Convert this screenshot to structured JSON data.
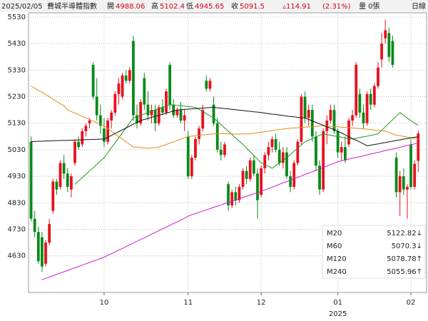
{
  "header": {
    "date": "2025/02/05",
    "name": "費城半導體指數",
    "quote": [
      {
        "label": "開",
        "value": "4988.06"
      },
      {
        "label": "高",
        "value": "5102.4"
      },
      {
        "label": "低",
        "value": "4945.65"
      },
      {
        "label": "收",
        "value": "5091.5"
      }
    ],
    "change": "▵114.91",
    "change_pct": "(2.31%)",
    "volume": "量 0張",
    "period": "日線"
  },
  "chart_data": {
    "type": "candlestick",
    "categories": [
      null,
      null,
      null,
      null,
      null,
      null,
      null,
      null,
      null,
      null,
      null,
      null,
      null,
      null,
      null,
      null,
      null,
      null,
      null,
      null,
      "10",
      null,
      null,
      null,
      null,
      null,
      null,
      null,
      null,
      null,
      null,
      null,
      null,
      null,
      null,
      null,
      null,
      null,
      null,
      null,
      null,
      null,
      null,
      "11",
      null,
      null,
      null,
      null,
      null,
      null,
      null,
      null,
      null,
      null,
      null,
      null,
      null,
      null,
      null,
      null,
      null,
      null,
      null,
      "12",
      null,
      null,
      null,
      null,
      null,
      null,
      null,
      null,
      null,
      null,
      null,
      null,
      null,
      null,
      null,
      null,
      null,
      null,
      null,
      null,
      "01",
      null,
      null,
      null,
      null,
      null,
      null,
      null,
      null,
      null,
      null,
      null,
      null,
      null,
      null,
      null,
      null,
      null,
      null,
      null,
      "02",
      null,
      null
    ],
    "year_label": "2025",
    "up_color": "#e8101e",
    "down_color": "#0a8a1a",
    "open": [
      5060,
      4770,
      4720,
      4700,
      4600,
      4680,
      4800,
      4910,
      4890,
      4980,
      4940,
      4880,
      4980,
      5060,
      5050,
      5100,
      5130,
      5350,
      5230,
      5160,
      5110,
      5060,
      5140,
      5170,
      5240,
      5230,
      5310,
      5290,
      5440,
      5160,
      5130,
      5300,
      5200,
      5160,
      5180,
      5130,
      5190,
      5170,
      5350,
      5200,
      5160,
      5180,
      5140,
      5080,
      4930,
      5000,
      5070,
      5110,
      5290,
      5260,
      5200,
      5130,
      5030,
      5010,
      4900,
      4820,
      4870,
      4840,
      4890,
      4950,
      4920,
      4990,
      4940,
      4860,
      4960,
      5010,
      5040,
      5070,
      5030,
      4980,
      5020,
      4930,
      4890,
      4980,
      5060,
      5230,
      5150,
      5180,
      5080,
      4970,
      4880,
      5100,
      5140,
      5180,
      5100,
      5020,
      5040,
      5050,
      5140,
      5160,
      5240,
      5170,
      5130,
      5240,
      5200,
      5270,
      5370,
      5450,
      5470,
      5440,
      5000,
      4870,
      4930,
      4880,
      5050,
      4890,
      4988.06
    ],
    "high": [
      5080,
      4800,
      4740,
      4720,
      4690,
      4770,
      4920,
      4920,
      4990,
      5010,
      4960,
      4940,
      5070,
      5080,
      5110,
      5130,
      5150,
      5360,
      5300,
      5200,
      5150,
      5150,
      5180,
      5250,
      5300,
      5320,
      5330,
      5340,
      5460,
      5200,
      5220,
      5320,
      5250,
      5200,
      5200,
      5200,
      5220,
      5260,
      5360,
      5220,
      5190,
      5210,
      5180,
      5100,
      5010,
      5080,
      5120,
      5200,
      5310,
      5300,
      5230,
      5150,
      5060,
      5060,
      4910,
      4880,
      4890,
      4900,
      4960,
      4970,
      5000,
      5010,
      4960,
      4970,
      5020,
      5060,
      5080,
      5090,
      5060,
      5040,
      5040,
      4950,
      4990,
      5070,
      5240,
      5250,
      5200,
      5200,
      5100,
      4990,
      5110,
      5160,
      5200,
      5200,
      5110,
      5060,
      5080,
      5150,
      5180,
      5360,
      5260,
      5200,
      5250,
      5260,
      5280,
      5360,
      5470,
      5520,
      5490,
      5460,
      5020,
      4950,
      4960,
      4900,
      5070,
      4990,
      5102.4
    ],
    "low": [
      4760,
      4700,
      4600,
      4570,
      4590,
      4670,
      4790,
      4860,
      4880,
      4920,
      4870,
      4850,
      4970,
      5030,
      5040,
      5080,
      5110,
      5220,
      5140,
      5090,
      5040,
      5050,
      5110,
      5160,
      5200,
      5220,
      5280,
      5280,
      5140,
      5110,
      5120,
      5180,
      5140,
      5130,
      5100,
      5120,
      5160,
      5160,
      5180,
      5150,
      5150,
      5130,
      5100,
      4920,
      4920,
      4990,
      5050,
      5100,
      5250,
      5250,
      5120,
      5020,
      4990,
      5000,
      4800,
      4810,
      4820,
      4830,
      4880,
      4900,
      4910,
      4930,
      4770,
      4850,
      4940,
      4990,
      5020,
      5020,
      4970,
      4960,
      4920,
      4870,
      4880,
      4970,
      5050,
      5130,
      5120,
      5060,
      4950,
      4860,
      4870,
      5050,
      5130,
      5090,
      5000,
      4990,
      4980,
      5040,
      5120,
      5150,
      5150,
      5110,
      5120,
      5180,
      5190,
      5260,
      5340,
      5430,
      5360,
      5340,
      4850,
      4780,
      4860,
      4770,
      4880,
      4880,
      4945.65
    ],
    "close": [
      4770,
      4720,
      4610,
      4590,
      4680,
      4750,
      4910,
      4880,
      4980,
      4940,
      4890,
      4930,
      5060,
      5040,
      5100,
      5120,
      5140,
      5230,
      5160,
      5120,
      5060,
      5140,
      5170,
      5240,
      5280,
      5310,
      5290,
      5330,
      5160,
      5130,
      5210,
      5200,
      5160,
      5180,
      5130,
      5190,
      5170,
      5250,
      5200,
      5160,
      5180,
      5140,
      5160,
      4930,
      5000,
      5070,
      5110,
      5180,
      5260,
      5290,
      5130,
      5030,
      5010,
      5050,
      4820,
      4870,
      4840,
      4890,
      4950,
      4920,
      4990,
      4940,
      4840,
      4960,
      5010,
      5040,
      5070,
      5030,
      4980,
      5020,
      4930,
      4890,
      4980,
      5060,
      5230,
      5150,
      5180,
      5080,
      4970,
      4880,
      5100,
      5140,
      5180,
      5100,
      5020,
      5040,
      4990,
      5140,
      5160,
      5350,
      5170,
      5130,
      5240,
      5200,
      5270,
      5340,
      5430,
      5480,
      5380,
      5350,
      4870,
      4930,
      4880,
      4890,
      4890,
      4976.59,
      5091.5
    ],
    "series": [
      {
        "name": "M20",
        "color": "#1a9a1a",
        "label": "5122.82↓",
        "values": [
          null,
          null,
          null,
          null,
          null,
          null,
          null,
          null,
          null,
          null,
          null,
          null,
          4900,
          4912,
          4925,
          4937,
          4950,
          4962,
          4975,
          4987,
          5000,
          5019,
          5038,
          5056,
          5075,
          5094,
          5112,
          5131,
          5150,
          5155,
          5160,
          5165,
          5170,
          5175,
          5180,
          5185,
          5190,
          5195,
          5200,
          5199,
          5197,
          5196,
          5194,
          5193,
          5191,
          5190,
          5182,
          5174,
          5166,
          5158,
          5150,
          5137,
          5125,
          5112,
          5100,
          5087,
          5075,
          5062,
          5050,
          5036,
          5022,
          5008,
          4994,
          4980,
          4973,
          4967,
          4960,
          4970,
          4980,
          4990,
          5000,
          5012,
          5024,
          5036,
          5048,
          5060,
          5066,
          5072,
          5078,
          5084,
          5090,
          5087,
          5085,
          5082,
          5080,
          5077,
          5075,
          5072,
          5070,
          5073,
          5076,
          5079,
          5081,
          5084,
          5087,
          5090,
          5103,
          5117,
          5130,
          5143,
          5157,
          5170,
          5160,
          5150,
          5140,
          5130,
          5122.82
        ]
      },
      {
        "name": "M60",
        "color": "#e08a1e",
        "label": "5070.3↓",
        "values": [
          5270,
          5262,
          5254,
          5246,
          5238,
          5230,
          5220,
          5212,
          5204,
          5196,
          5180,
          5174,
          5168,
          5162,
          5156,
          5150,
          5144,
          5138,
          5132,
          5126,
          5120,
          5110,
          5100,
          5090,
          5080,
          5070,
          5060,
          5050,
          5040,
          5040,
          5038,
          5037,
          5036,
          5037,
          5038,
          5040,
          5045,
          5050,
          5055,
          5060,
          5065,
          5070,
          5075,
          5080,
          5081,
          5083,
          5084,
          5086,
          5087,
          5089,
          5090,
          5090,
          5091,
          5091,
          5090,
          5090,
          5089,
          5089,
          5090,
          5090,
          5090,
          5092,
          5094,
          5096,
          5098,
          5100,
          5102,
          5104,
          5106,
          5108,
          5110,
          5111,
          5112,
          5113,
          5114,
          5115,
          5116,
          5117,
          5118,
          5119,
          5120,
          5119,
          5118,
          5117,
          5116,
          5115,
          5114,
          5113,
          5112,
          5111,
          5110,
          5109,
          5107,
          5106,
          5104,
          5103,
          5101,
          5100,
          5095,
          5090,
          5085,
          5083,
          5080,
          5078,
          5075,
          5073,
          5070.3
        ]
      },
      {
        "name": "M120",
        "color": "#111111",
        "label": "5078.78↑",
        "values": [
          5060,
          5061,
          5062,
          5062,
          5063,
          5063,
          5064,
          5064,
          5065,
          5065,
          5065,
          5066,
          5066,
          5067,
          5067,
          5068,
          5068,
          5069,
          5069,
          5070,
          5070,
          5077,
          5084,
          5091,
          5098,
          5105,
          5112,
          5119,
          5126,
          5133,
          5140,
          5144,
          5148,
          5152,
          5156,
          5160,
          5164,
          5168,
          5172,
          5176,
          5180,
          5181,
          5182,
          5183,
          5184,
          5185,
          5186,
          5187,
          5188,
          5189,
          5190,
          5188,
          5187,
          5185,
          5184,
          5182,
          5181,
          5179,
          5178,
          5176,
          5175,
          5173,
          5172,
          5170,
          5168,
          5166,
          5164,
          5163,
          5161,
          5159,
          5157,
          5155,
          5154,
          5152,
          5150,
          5150,
          5144,
          5139,
          5133,
          5128,
          5122,
          5117,
          5111,
          5106,
          5100,
          5093,
          5086,
          5079,
          5072,
          5066,
          5059,
          5052,
          5045,
          5047,
          5050,
          5052,
          5055,
          5057,
          5060,
          5062,
          5065,
          5067,
          5070,
          5072,
          5075,
          5077,
          5078.78
        ]
      },
      {
        "name": "M240",
        "color": "#d21ad2",
        "label": "5055.96↑",
        "values": [
          null,
          null,
          null,
          4540,
          4545,
          4550,
          4555,
          4560,
          4565,
          4570,
          4575,
          4580,
          4585,
          4590,
          4595,
          4600,
          4605,
          4610,
          4615,
          4620,
          4625,
          4632,
          4638,
          4645,
          4652,
          4658,
          4665,
          4672,
          4678,
          4685,
          4692,
          4698,
          4705,
          4712,
          4718,
          4725,
          4732,
          4738,
          4745,
          4752,
          4758,
          4765,
          4772,
          4780,
          4785,
          4789,
          4794,
          4799,
          4803,
          4808,
          4813,
          4817,
          4822,
          4827,
          4831,
          4836,
          4840,
          4845,
          4850,
          4854,
          4859,
          4864,
          4868,
          4873,
          4878,
          4884,
          4889,
          4894,
          4900,
          4905,
          4910,
          4915,
          4921,
          4926,
          4931,
          4937,
          4942,
          4947,
          4952,
          4958,
          4963,
          4968,
          4974,
          4979,
          4985,
          4988,
          4991,
          4995,
          4998,
          5001,
          5004,
          5007,
          5011,
          5014,
          5017,
          5020,
          5023,
          5027,
          5030,
          5033,
          5036,
          5039,
          5043,
          5046,
          5049,
          5052,
          5055.96
        ]
      }
    ],
    "ylim": [
      4492,
      5546
    ],
    "yticks": [
      4630,
      4730,
      4830,
      4930,
      5030,
      5130,
      5230,
      5330,
      5430,
      5530
    ],
    "grid": true
  }
}
